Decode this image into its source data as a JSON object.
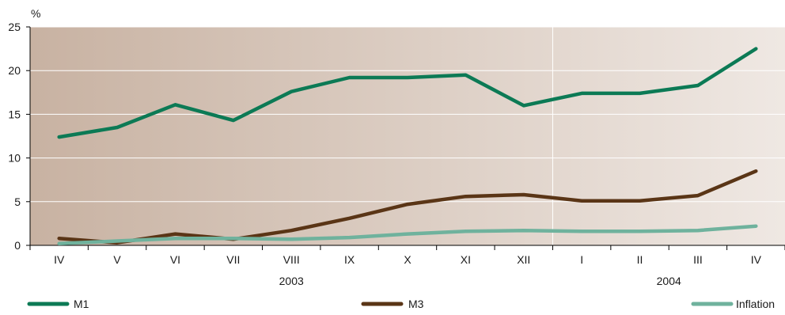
{
  "chart_data": {
    "type": "line",
    "ylabel": "%",
    "ylim": [
      0,
      25
    ],
    "yticks": [
      0,
      5,
      10,
      15,
      20,
      25
    ],
    "categories": [
      "IV",
      "V",
      "VI",
      "VII",
      "VIII",
      "IX",
      "X",
      "XI",
      "XII",
      "I",
      "II",
      "III",
      "IV"
    ],
    "year_groups": [
      {
        "label": "2003",
        "from": 0,
        "to": 8
      },
      {
        "label": "2004",
        "from": 9,
        "to": 12
      }
    ],
    "grid": true,
    "legend_position": "bottom",
    "series": [
      {
        "name": "M1",
        "color": "#0c7a55",
        "values": [
          12.4,
          13.5,
          16.1,
          14.3,
          17.6,
          19.2,
          19.2,
          19.5,
          16.0,
          17.4,
          17.4,
          18.3,
          22.5
        ]
      },
      {
        "name": "M3",
        "color": "#5a3516",
        "values": [
          0.8,
          0.3,
          1.3,
          0.7,
          1.7,
          3.1,
          4.7,
          5.6,
          5.8,
          5.1,
          5.1,
          5.7,
          8.5
        ]
      },
      {
        "name": "Inflation",
        "color": "#6fb29d",
        "values": [
          0.2,
          0.5,
          0.8,
          0.8,
          0.7,
          0.9,
          1.3,
          1.6,
          1.7,
          1.6,
          1.6,
          1.7,
          2.2
        ]
      }
    ],
    "background_gradient": [
      "#c8b2a2",
      "#efe8e3"
    ]
  }
}
